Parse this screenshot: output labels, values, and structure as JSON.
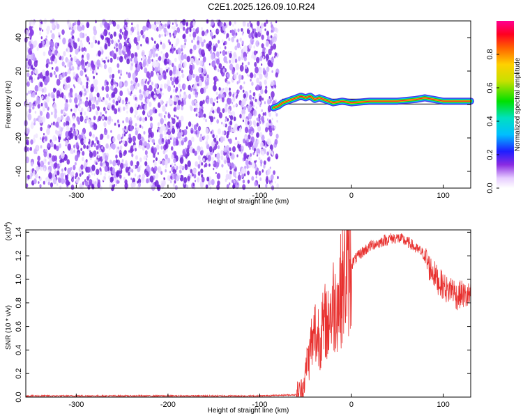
{
  "title": "C2E1.2025.126.09.10.R24",
  "chart_data": [
    {
      "type": "heatmap",
      "xlabel": "Height of straight line (km)",
      "ylabel": "Frequency (Hz)",
      "xlim": [
        -355,
        130
      ],
      "ylim": [
        -50,
        50
      ],
      "xticks": [
        -300,
        -200,
        -100,
        0,
        100
      ],
      "yticks": [
        -40,
        -20,
        0,
        20,
        40
      ],
      "noise_region_x": [
        -355,
        -80
      ],
      "signal_track": {
        "x": [
          -85,
          -80,
          -75,
          -70,
          -65,
          -60,
          -55,
          -50,
          -45,
          -40,
          -35,
          -30,
          -25,
          -20,
          -10,
          0,
          20,
          50,
          70,
          80,
          90,
          100,
          110,
          130
        ],
        "y": [
          -2,
          -1,
          1,
          2,
          3,
          4,
          5,
          4,
          5,
          3,
          4,
          3,
          2,
          1,
          2,
          1,
          2,
          2,
          3,
          4,
          3,
          2,
          2,
          2
        ]
      },
      "reference_band_y": [
        0.3,
        3.2
      ],
      "colorbar": {
        "label": "Normalized spectral amplitude",
        "range": [
          0,
          1
        ],
        "ticks": [
          0.0,
          0.2,
          0.4,
          0.6,
          0.8
        ],
        "tick_labels": [
          "0.0",
          "0.2",
          "0.4",
          "0.6",
          "0.8"
        ]
      }
    },
    {
      "type": "line",
      "xlabel": "Height of straight line (km)",
      "ylabel": "SNR (10 * v/v)",
      "scale_label": "(x10",
      "scale_exp": "4",
      "scale_close": ")",
      "xlim": [
        -355,
        130
      ],
      "ylim": [
        0,
        1.42
      ],
      "xticks": [
        -300,
        -200,
        -100,
        0,
        100
      ],
      "yticks": [
        0.0,
        0.2,
        0.4,
        0.6,
        0.8,
        1.0,
        1.2,
        1.4
      ],
      "ytick_labels": [
        "0.0",
        "0.2",
        "0.4",
        "0.6",
        "0.8",
        "1.0",
        "1.2",
        "1.4"
      ],
      "series": [
        {
          "color": "#e8312f",
          "x": [
            -355,
            -100,
            -60,
            -55,
            -52,
            -50,
            -48,
            -46,
            -44,
            -42,
            -40,
            -38,
            -36,
            -34,
            -32,
            -30,
            -28,
            -26,
            -24,
            -22,
            -20,
            -18,
            -16,
            -14,
            -12,
            -10,
            -8,
            -6,
            -4,
            -2,
            0,
            2,
            5,
            8,
            10,
            15,
            20,
            25,
            30,
            35,
            40,
            45,
            50,
            55,
            60,
            65,
            70,
            75,
            80,
            85,
            90,
            95,
            100,
            105,
            110,
            115,
            120,
            125,
            130
          ],
          "y": [
            0.01,
            0.01,
            0.02,
            0.05,
            0.1,
            0.2,
            0.35,
            0.3,
            0.5,
            0.4,
            0.6,
            0.45,
            0.55,
            0.5,
            0.6,
            0.55,
            0.7,
            0.55,
            0.75,
            0.7,
            0.8,
            0.75,
            0.85,
            0.8,
            0.9,
            0.95,
            1.0,
            1.05,
            1.08,
            1.1,
            1.12,
            1.15,
            1.18,
            1.2,
            1.22,
            1.25,
            1.28,
            1.3,
            1.31,
            1.33,
            1.34,
            1.35,
            1.35,
            1.34,
            1.32,
            1.3,
            1.26,
            1.24,
            1.2,
            1.1,
            1.05,
            0.98,
            0.95,
            0.9,
            0.93,
            0.85,
            0.88,
            0.85,
            0.87
          ]
        }
      ]
    }
  ]
}
